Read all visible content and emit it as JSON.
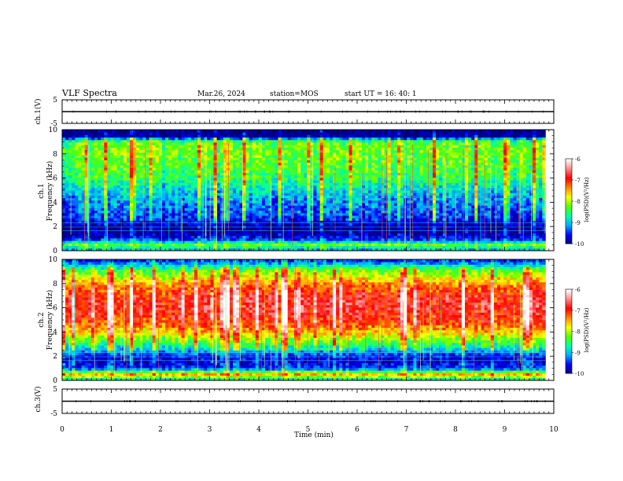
{
  "header": {
    "title": "VLF Spectra",
    "date": "Mar.26, 2024",
    "station": "station=MOS",
    "start": "start  UT =   16: 40: 1"
  },
  "chart_data": [
    {
      "type": "line",
      "name": "ch1-waveform",
      "ylabel": "ch.1(V)",
      "ylim": [
        -5,
        5
      ],
      "yticks": [
        "5",
        "-5"
      ],
      "x": [
        0,
        10
      ],
      "values": [
        0,
        0
      ],
      "xlim": [
        0,
        10
      ]
    },
    {
      "type": "heatmap",
      "name": "ch1-spectrogram",
      "ylabel": "ch.1\nFrequency (kHz)",
      "ylabel_line1": "ch.1",
      "ylabel_line2": "Frequency (kHz)",
      "ylim": [
        0,
        10
      ],
      "yticks": [
        "0",
        "2",
        "4",
        "6",
        "8",
        "10"
      ],
      "xlim": [
        0,
        9.83
      ],
      "profile": {
        "freq_kHz": [
          0,
          0.5,
          1,
          1.5,
          2,
          2.5,
          3,
          4,
          5,
          6,
          7,
          8,
          9,
          9.5,
          10
        ],
        "log_psd": [
          -9.2,
          -8.2,
          -9.6,
          -9.9,
          -9.9,
          -9.6,
          -9.4,
          -9.2,
          -8.9,
          -8.5,
          -8.3,
          -8.2,
          -8.3,
          -10,
          -10
        ]
      },
      "colorbar": {
        "label": "log(PSD)(V²/Hz)",
        "range": [
          -10,
          -6
        ],
        "ticks": [
          "-6",
          "-7",
          "-8",
          "-9",
          "-10"
        ]
      }
    },
    {
      "type": "heatmap",
      "name": "ch2-spectrogram",
      "ylabel_line1": "ch.2",
      "ylabel_line2": "Frequency (kHz)",
      "ylim": [
        0,
        10
      ],
      "yticks": [
        "0",
        "2",
        "4",
        "6",
        "8",
        "10"
      ],
      "xlim": [
        0,
        9.83
      ],
      "profile": {
        "freq_kHz": [
          0,
          0.5,
          1,
          1.5,
          2,
          2.5,
          3,
          4,
          5,
          6,
          7,
          8,
          9,
          9.5,
          10
        ],
        "log_psd": [
          -9.0,
          -7.5,
          -9.4,
          -9.7,
          -9.6,
          -9.0,
          -8.5,
          -7.6,
          -7.0,
          -6.8,
          -6.9,
          -7.4,
          -8.2,
          -8.8,
          -9.6
        ]
      },
      "colorbar": {
        "label": "log(PSD)(V²/Hz)",
        "range": [
          -10,
          -6
        ],
        "ticks": [
          "-6",
          "-7",
          "-8",
          "-9",
          "-10"
        ]
      }
    },
    {
      "type": "line",
      "name": "ch3-waveform",
      "ylabel": "ch.3(V)",
      "ylim": [
        -5,
        5
      ],
      "yticks": [
        "5",
        "-5"
      ],
      "x": [
        0,
        10
      ],
      "values": [
        0,
        0
      ],
      "xlim": [
        0,
        10
      ]
    }
  ],
  "xaxis": {
    "label": "Time (min)",
    "range": [
      0,
      10
    ],
    "ticks": [
      "0",
      "1",
      "2",
      "3",
      "4",
      "5",
      "6",
      "7",
      "8",
      "9",
      "10"
    ]
  },
  "colors": {
    "colormap": [
      "#000080",
      "#0000ff",
      "#00aaff",
      "#00ffaa",
      "#55ff00",
      "#ffff00",
      "#ff8800",
      "#ff0000",
      "#ff8888",
      "#ffffff"
    ]
  }
}
